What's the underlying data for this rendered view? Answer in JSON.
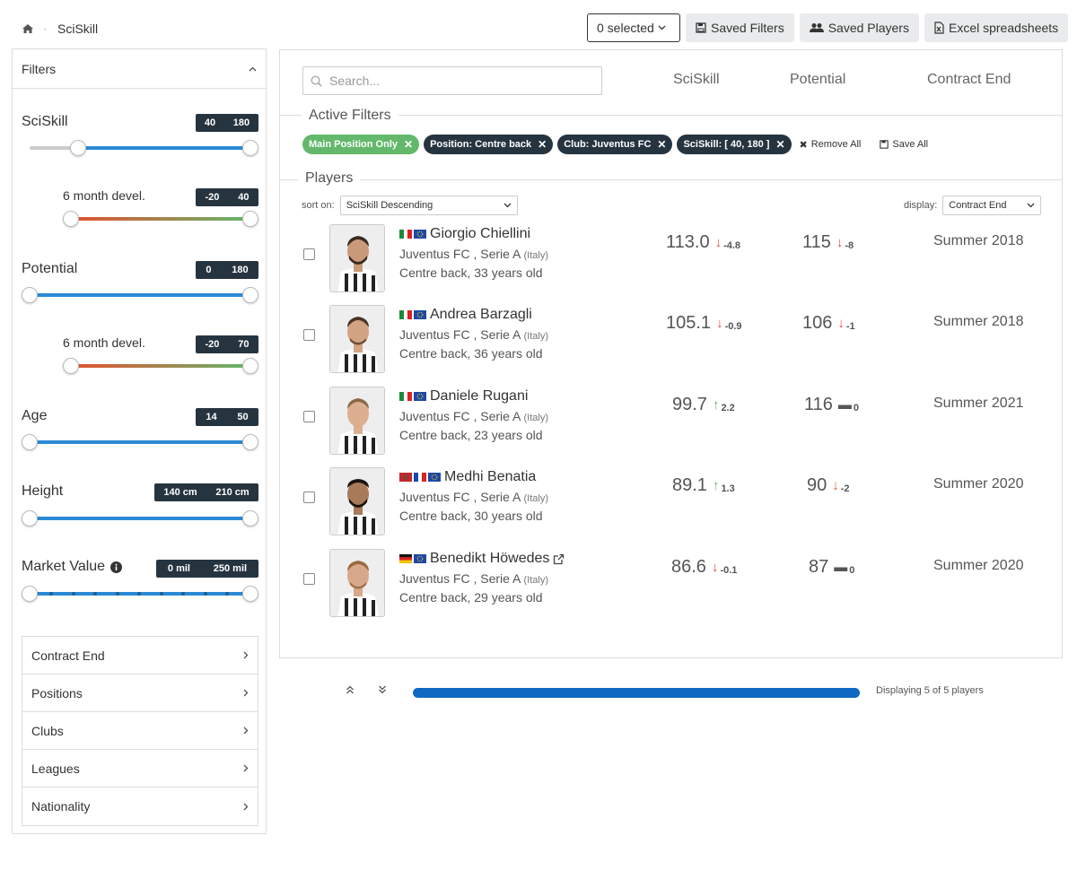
{
  "breadcrumb": {
    "current": "SciSkill"
  },
  "toolbar": {
    "selected_label": "0 selected",
    "saved_filters": "Saved Filters",
    "saved_players": "Saved Players",
    "excel": "Excel spreadsheets"
  },
  "filters": {
    "title": "Filters",
    "sciskill": {
      "label": "SciSkill",
      "min": "40",
      "max": "180"
    },
    "sciskill_devel": {
      "label": "6 month devel.",
      "min": "-20",
      "max": "40"
    },
    "potential": {
      "label": "Potential",
      "min": "0",
      "max": "180"
    },
    "potential_devel": {
      "label": "6 month devel.",
      "min": "-20",
      "max": "70"
    },
    "age": {
      "label": "Age",
      "min": "14",
      "max": "50"
    },
    "height": {
      "label": "Height",
      "min": "140 cm",
      "max": "210 cm"
    },
    "market_value": {
      "label": "Market Value",
      "min": "0 mil",
      "max": "250 mil"
    },
    "sections": [
      "Contract End",
      "Positions",
      "Clubs",
      "Leagues",
      "Nationality"
    ]
  },
  "main": {
    "search_placeholder": "Search...",
    "columns": {
      "sciskill": "SciSkill",
      "potential": "Potential",
      "contract": "Contract End"
    },
    "active_filters_title": "Active Filters",
    "chips": [
      "Main Position Only",
      "Position: Centre back",
      "Club: Juventus FC",
      "SciSkill: [ 40, 180 ]"
    ],
    "remove_all": "Remove All",
    "save_all": "Save All",
    "players_title": "Players",
    "sort_label": "sort on:",
    "sort_value": "SciSkill Descending",
    "display_label": "display:",
    "display_value": "Contract End"
  },
  "players": [
    {
      "name": "Giorgio Chiellini",
      "club": "Juventus FC , Serie A",
      "country": "(Italy)",
      "pos": "Centre back, 33 years old",
      "sci": "113.0",
      "sci_delta": "-4.8",
      "pot": "115",
      "pot_delta": "-8",
      "contract": "Summer 2018"
    },
    {
      "name": "Andrea Barzagli",
      "club": "Juventus FC , Serie A",
      "country": "(Italy)",
      "pos": "Centre back, 36 years old",
      "sci": "105.1",
      "sci_delta": "-0.9",
      "pot": "106",
      "pot_delta": "-1",
      "contract": "Summer 2018"
    },
    {
      "name": "Daniele Rugani",
      "club": "Juventus FC , Serie A",
      "country": "(Italy)",
      "pos": "Centre back, 23 years old",
      "sci": "99.7",
      "sci_delta": "2.2",
      "pot": "116",
      "pot_delta": "0",
      "contract": "Summer 2021"
    },
    {
      "name": "Medhi Benatia",
      "club": "Juventus FC , Serie A",
      "country": "(Italy)",
      "pos": "Centre back, 30 years old",
      "sci": "89.1",
      "sci_delta": "1.3",
      "pot": "90",
      "pot_delta": "-2",
      "contract": "Summer 2020"
    },
    {
      "name": "Benedikt Höwedes",
      "club": "Juventus FC , Serie A",
      "country": "(Italy)",
      "pos": "Centre back, 29 years old",
      "sci": "86.6",
      "sci_delta": "-0.1",
      "pot": "87",
      "pot_delta": "0",
      "contract": "Summer 2020"
    }
  ],
  "pagination": {
    "info": "Displaying 5 of 5 players"
  }
}
